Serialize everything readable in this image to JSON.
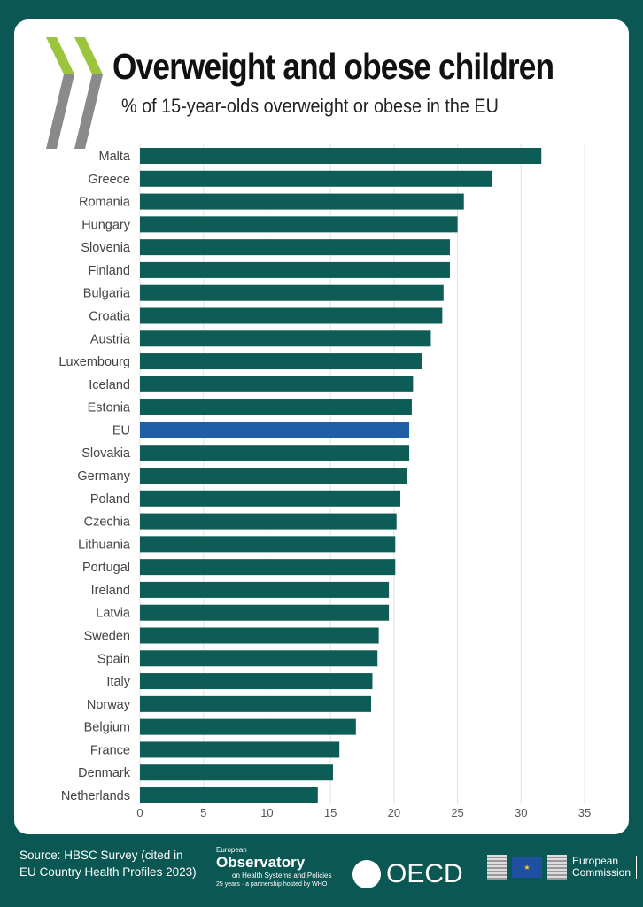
{
  "header": {
    "title": "Overweight and obese children",
    "subtitle": "% of 15-year-olds overweight or obese in the EU"
  },
  "colors": {
    "background": "#0b5753",
    "bar": "#0d5c55",
    "highlight": "#1f5fa5",
    "logo_green": "#9bc53d",
    "logo_gray": "#8a8a8a"
  },
  "chart_data": {
    "type": "bar",
    "orientation": "horizontal",
    "title": "Overweight and obese children",
    "subtitle": "% of 15-year-olds overweight or obese in the EU",
    "xlim": [
      0,
      35
    ],
    "xticks": [
      0,
      5,
      10,
      15,
      20,
      25,
      30,
      35
    ],
    "grid": true,
    "highlight": "EU",
    "categories": [
      "Malta",
      "Greece",
      "Romania",
      "Hungary",
      "Slovenia",
      "Finland",
      "Bulgaria",
      "Croatia",
      "Austria",
      "Luxembourg",
      "Iceland",
      "Estonia",
      "EU",
      "Slovakia",
      "Germany",
      "Poland",
      "Czechia",
      "Lithuania",
      "Portugal",
      "Ireland",
      "Latvia",
      "Sweden",
      "Spain",
      "Italy",
      "Norway",
      "Belgium",
      "France",
      "Denmark",
      "Netherlands"
    ],
    "values": [
      31.6,
      27.7,
      25.5,
      25.0,
      24.4,
      24.4,
      23.9,
      23.8,
      22.9,
      22.2,
      21.5,
      21.4,
      21.2,
      21.2,
      21.0,
      20.5,
      20.2,
      20.1,
      20.1,
      19.6,
      19.6,
      18.8,
      18.7,
      18.3,
      18.2,
      17.0,
      15.7,
      15.2,
      14.0
    ]
  },
  "footer": {
    "source_line1": "Source: HBSC Survey (cited in",
    "source_line2": "EU Country Health Profiles 2023)",
    "observatory_small": "European",
    "observatory_big": "Observatory",
    "observatory_sub": "on Health Systems and Policies",
    "observatory_years": "25 years · a partnership hosted by WHO",
    "oecd": "OECD",
    "ec_line1": "European",
    "ec_line2": "Commission"
  }
}
